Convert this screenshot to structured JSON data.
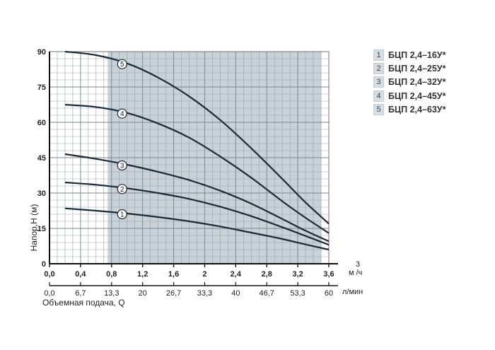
{
  "chart_data": {
    "type": "line",
    "ylabel": "Напор,Н (м)",
    "xlabel": "Объемная подача, Q",
    "x_unit": "м³/ч",
    "x_unit_base": "м",
    "x_unit_sup": "3",
    "x_unit_rest": "/ч",
    "x2_unit": "л/мин",
    "xlim": [
      0,
      3.6
    ],
    "ylim": [
      0,
      90
    ],
    "x_ticks": [
      "0,0",
      "0,4",
      "0,8",
      "1,2",
      "1,6",
      "2",
      "2,4",
      "2,8",
      "3,2",
      "3,6"
    ],
    "x2_ticks": [
      "0,0",
      "6,7",
      "13,3",
      "20",
      "26,7",
      "33,3",
      "40",
      "46,7",
      "53,3",
      "60"
    ],
    "y_ticks": [
      "0",
      "15",
      "30",
      "45",
      "60",
      "75",
      "90"
    ],
    "grid": true,
    "shaded_region": [
      0.75,
      3.5
    ],
    "series": [
      {
        "name": "БЦП 2,4–16У*",
        "label": "1",
        "x": [
          0.2,
          0.6,
          1.0,
          1.4,
          1.8,
          2.2,
          2.6,
          3.0,
          3.3,
          3.6
        ],
        "y": [
          23.5,
          22.5,
          21.3,
          19.8,
          18.0,
          15.8,
          13.2,
          10.5,
          8.2,
          6.0
        ]
      },
      {
        "name": "БЦП 2,4–25У*",
        "label": "2",
        "x": [
          0.2,
          0.6,
          1.0,
          1.4,
          1.8,
          2.2,
          2.6,
          3.0,
          3.3,
          3.6
        ],
        "y": [
          34.5,
          33.5,
          32.0,
          30.0,
          27.5,
          24.2,
          20.2,
          15.5,
          11.8,
          8.0
        ]
      },
      {
        "name": "БЦП 2,4–32У*",
        "label": "3",
        "x": [
          0.2,
          0.6,
          1.0,
          1.4,
          1.8,
          2.2,
          2.6,
          3.0,
          3.3,
          3.6
        ],
        "y": [
          46.5,
          44.5,
          42.0,
          39.0,
          35.5,
          31.0,
          25.5,
          19.0,
          14.0,
          9.5
        ]
      },
      {
        "name": "БЦП 2,4–45У*",
        "label": "4",
        "x": [
          0.2,
          0.6,
          1.0,
          1.4,
          1.8,
          2.2,
          2.6,
          3.0,
          3.3,
          3.6
        ],
        "y": [
          67.5,
          66.5,
          64.0,
          59.5,
          53.5,
          45.5,
          36.5,
          26.5,
          19.5,
          13.0
        ]
      },
      {
        "name": "БЦП 2,4–63У*",
        "label": "5",
        "x": [
          0.2,
          0.6,
          1.0,
          1.4,
          1.8,
          2.2,
          2.6,
          3.0,
          3.3,
          3.6
        ],
        "y": [
          90.0,
          88.5,
          85.0,
          79.0,
          71.0,
          61.0,
          49.0,
          36.0,
          26.0,
          17.0
        ]
      }
    ],
    "marker_x": [
      1.0,
      1.0,
      1.0,
      1.0,
      1.0
    ]
  }
}
